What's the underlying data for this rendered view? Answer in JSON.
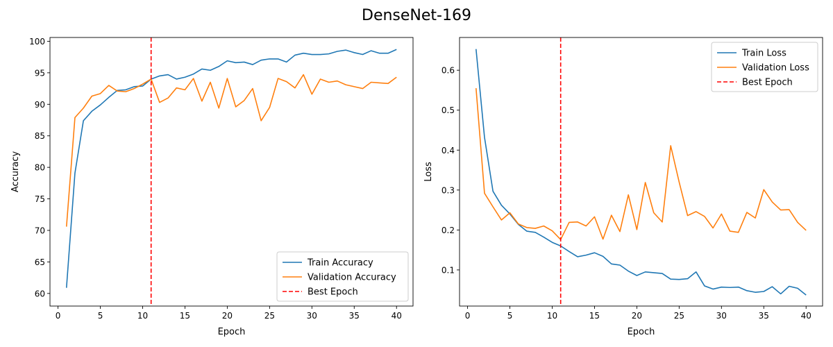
{
  "figure": {
    "title": "DenseNet-169"
  },
  "colors": {
    "train": "#1f77b4",
    "validation": "#ff7f0e",
    "best": "#ff0000",
    "frame": "#000000",
    "legend_border": "#cccccc"
  },
  "chart_data": [
    {
      "type": "line",
      "xlabel": "Epoch",
      "ylabel": "Accuracy",
      "xlim": [
        -0.95,
        41.95
      ],
      "ylim": [
        58.0,
        100.6
      ],
      "xticks": [
        0,
        5,
        10,
        15,
        20,
        25,
        30,
        35,
        40
      ],
      "yticks": [
        60,
        65,
        70,
        75,
        80,
        85,
        90,
        95,
        100
      ],
      "grid": false,
      "legend_position": "lower right",
      "x": [
        1,
        2,
        3,
        4,
        5,
        6,
        7,
        8,
        9,
        10,
        11,
        12,
        13,
        14,
        15,
        16,
        17,
        18,
        19,
        20,
        21,
        22,
        23,
        24,
        25,
        26,
        27,
        28,
        29,
        30,
        31,
        32,
        33,
        34,
        35,
        36,
        37,
        38,
        39,
        40
      ],
      "series": [
        {
          "name": "Train Accuracy",
          "color_key": "train",
          "values": [
            60.9,
            79.1,
            87.4,
            88.9,
            89.9,
            91.1,
            92.2,
            92.3,
            92.8,
            92.9,
            94.0,
            94.5,
            94.7,
            94.0,
            94.3,
            94.8,
            95.6,
            95.4,
            96.0,
            96.9,
            96.6,
            96.7,
            96.3,
            97.0,
            97.2,
            97.2,
            96.7,
            97.8,
            98.1,
            97.9,
            97.9,
            98.0,
            98.4,
            98.6,
            98.2,
            97.9,
            98.5,
            98.1,
            98.1,
            98.7
          ]
        },
        {
          "name": "Validation Accuracy",
          "color_key": "validation",
          "values": [
            70.6,
            87.9,
            89.4,
            91.3,
            91.7,
            93.0,
            92.1,
            92.0,
            92.5,
            93.2,
            94.0,
            90.3,
            91.0,
            92.6,
            92.3,
            94.1,
            90.5,
            93.5,
            89.4,
            94.1,
            89.6,
            90.6,
            92.5,
            87.4,
            89.5,
            94.1,
            93.6,
            92.6,
            94.7,
            91.6,
            94.0,
            93.5,
            93.7,
            93.1,
            92.8,
            92.5,
            93.5,
            93.4,
            93.3,
            94.3
          ]
        }
      ],
      "best_epoch": {
        "name": "Best Epoch",
        "x": 11,
        "color_key": "best"
      }
    },
    {
      "type": "line",
      "xlabel": "Epoch",
      "ylabel": "Loss",
      "xlim": [
        -0.95,
        41.95
      ],
      "ylim": [
        0.0095,
        0.682
      ],
      "xticks": [
        0,
        5,
        10,
        15,
        20,
        25,
        30,
        35,
        40
      ],
      "yticks": [
        0.1,
        0.2,
        0.3,
        0.4,
        0.5,
        0.6
      ],
      "grid": false,
      "legend_position": "upper right",
      "x": [
        1,
        2,
        3,
        4,
        5,
        6,
        7,
        8,
        9,
        10,
        11,
        12,
        13,
        14,
        15,
        16,
        17,
        18,
        19,
        20,
        21,
        22,
        23,
        24,
        25,
        26,
        27,
        28,
        29,
        30,
        31,
        32,
        33,
        34,
        35,
        36,
        37,
        38,
        39,
        40
      ],
      "series": [
        {
          "name": "Train Loss",
          "color_key": "train",
          "values": [
            0.653,
            0.432,
            0.297,
            0.262,
            0.24,
            0.214,
            0.197,
            0.194,
            0.182,
            0.169,
            0.16,
            0.146,
            0.133,
            0.137,
            0.143,
            0.134,
            0.115,
            0.112,
            0.097,
            0.086,
            0.095,
            0.093,
            0.091,
            0.077,
            0.076,
            0.078,
            0.095,
            0.06,
            0.052,
            0.057,
            0.056,
            0.057,
            0.048,
            0.044,
            0.046,
            0.058,
            0.04,
            0.059,
            0.054,
            0.037
          ]
        },
        {
          "name": "Validation Loss",
          "color_key": "validation",
          "values": [
            0.555,
            0.292,
            0.258,
            0.225,
            0.243,
            0.215,
            0.206,
            0.204,
            0.21,
            0.198,
            0.176,
            0.219,
            0.22,
            0.21,
            0.233,
            0.177,
            0.237,
            0.196,
            0.288,
            0.201,
            0.319,
            0.243,
            0.22,
            0.411,
            0.32,
            0.236,
            0.246,
            0.234,
            0.205,
            0.24,
            0.197,
            0.194,
            0.244,
            0.23,
            0.301,
            0.27,
            0.25,
            0.251,
            0.219,
            0.199
          ]
        }
      ],
      "best_epoch": {
        "name": "Best Epoch",
        "x": 11,
        "color_key": "best"
      }
    }
  ]
}
